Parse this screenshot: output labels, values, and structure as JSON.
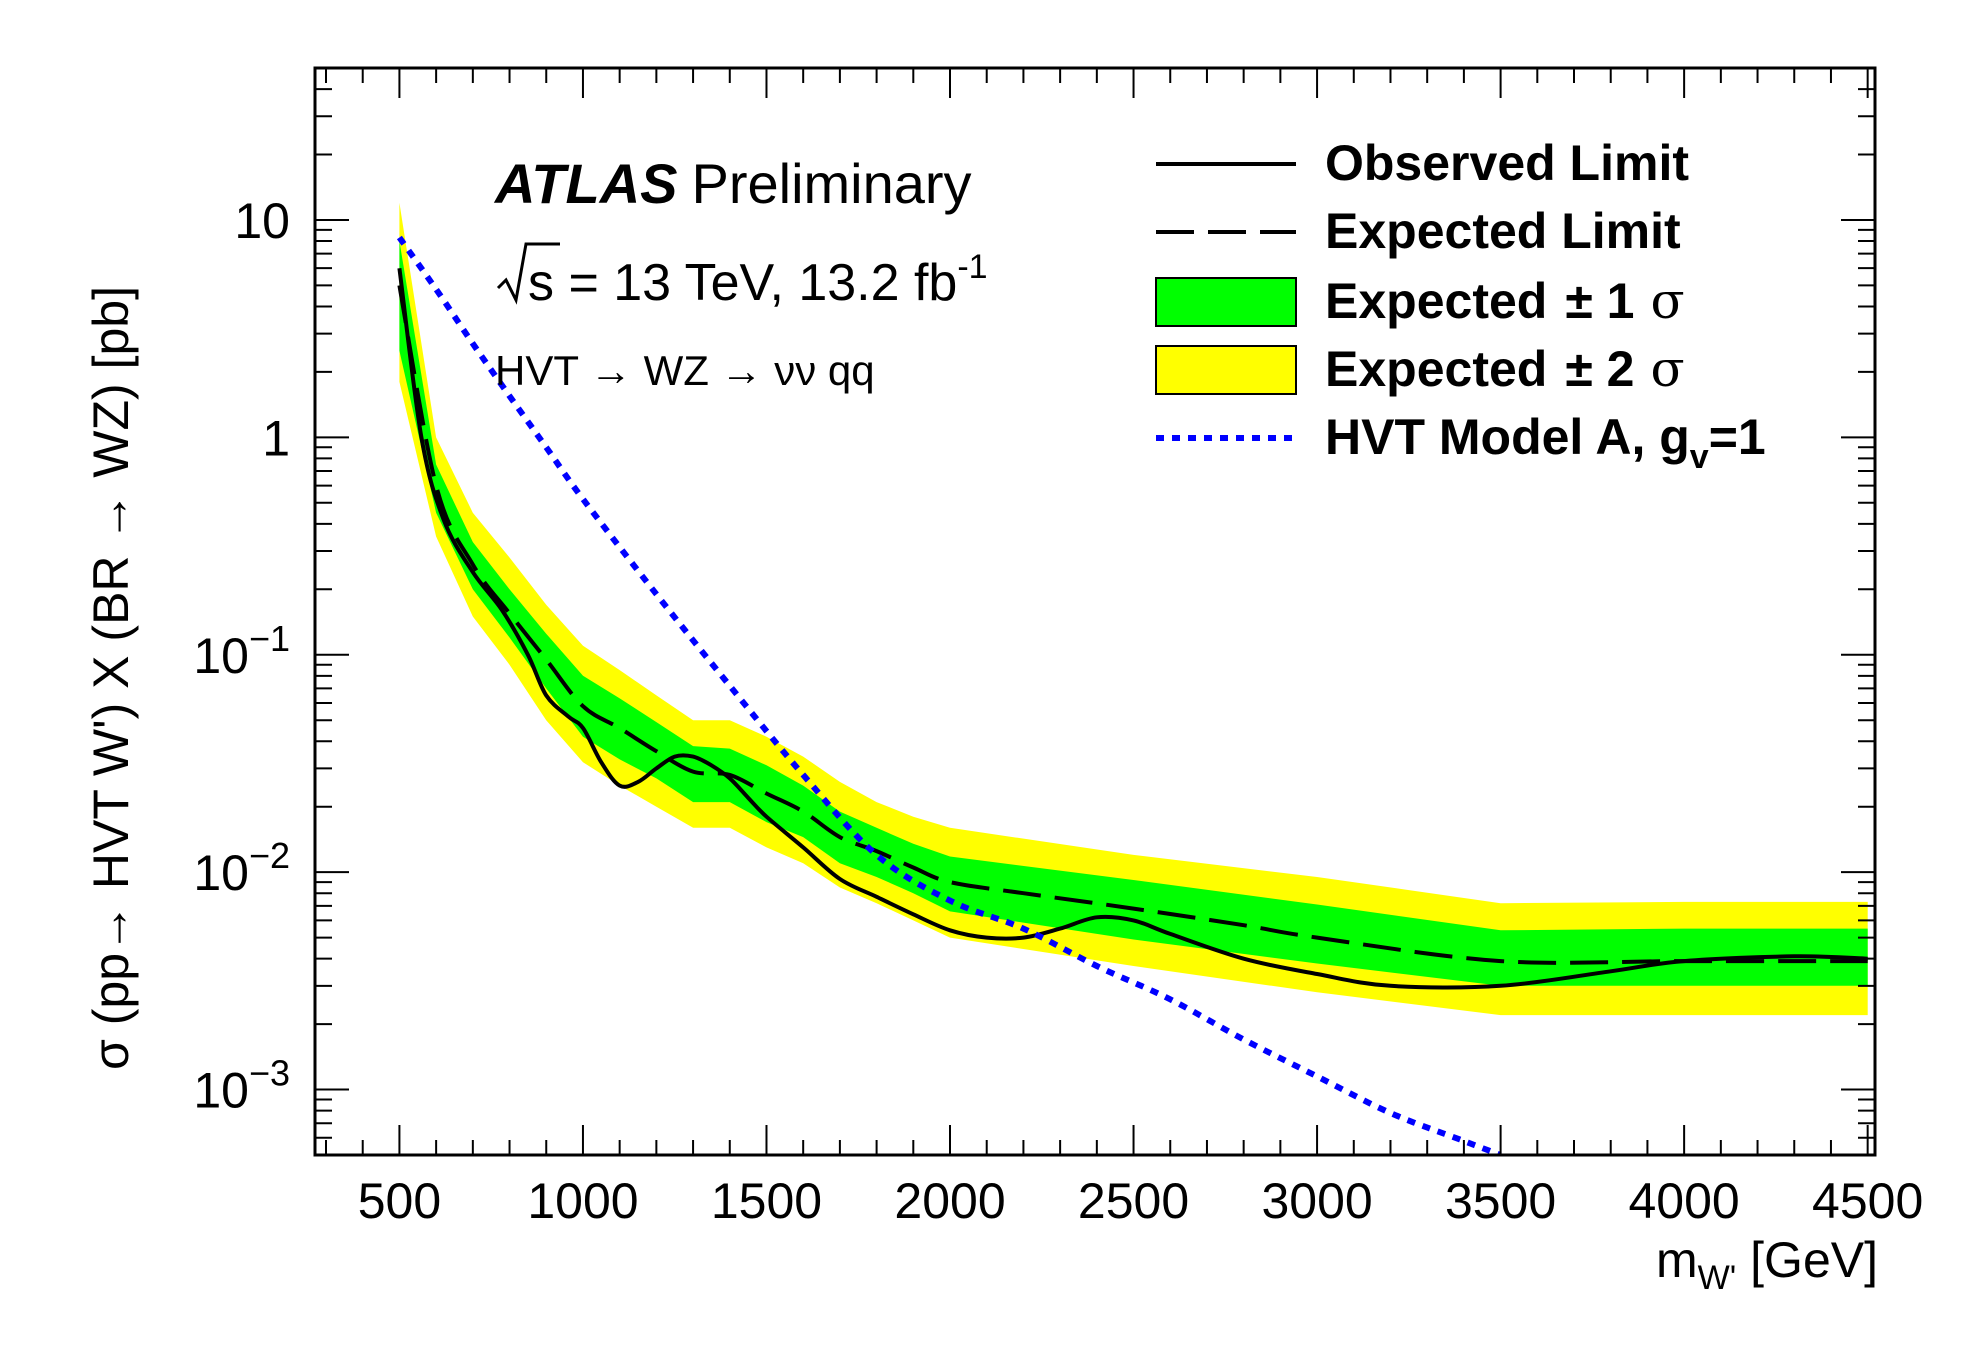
{
  "chart_data": {
    "type": "line",
    "x_axis": {
      "label_main": "m",
      "label_sub": "W'",
      "label_unit": " [GeV]",
      "range": [
        270,
        4520
      ],
      "ticks": [
        500,
        1000,
        1500,
        2000,
        2500,
        3000,
        3500,
        4000,
        4500
      ],
      "tick_labels": [
        "500",
        "1000",
        "1500",
        "2000",
        "2500",
        "3000",
        "3500",
        "4000",
        "4500"
      ]
    },
    "y_axis": {
      "label": "σ (pp→ HVT W') X (BR → WZ)  [pb]",
      "scale": "log",
      "range": [
        0.0005,
        50
      ],
      "ticks": [
        0.001,
        0.01,
        0.1,
        1,
        10
      ],
      "tick_label_plain": [
        "1",
        "10"
      ],
      "tick_label_base": "10",
      "tick_label_exp": [
        "−3",
        "−2",
        "−1"
      ]
    },
    "annotations": {
      "experiment": "ATLAS",
      "status": "Preliminary",
      "sqrt_s": "s = 13 TeV, 13.2 fb",
      "sqrt_s_sup": "-1",
      "channel": "HVT → WZ → νν qq"
    },
    "legend": {
      "observed": "Observed  Limit",
      "expected": "Expected Limit",
      "one_sigma_text": "Expected",
      "one_sigma_pm": "± 1",
      "one_sigma_sym": "σ",
      "two_sigma_text": "Expected",
      "two_sigma_pm": "± 2",
      "two_sigma_sym": "σ",
      "model_main": "HVT Model A, g",
      "model_sub": "v",
      "model_tail": "=1"
    },
    "colors": {
      "observed": "#000000",
      "expected": "#000000",
      "one_sigma": "#00ff00",
      "two_sigma": "#ffff00",
      "model": "#0000ff"
    },
    "series": {
      "two_sigma_band": {
        "x": [
          500,
          600,
          700,
          800,
          900,
          1000,
          1100,
          1200,
          1300,
          1400,
          1500,
          1600,
          1700,
          1800,
          1900,
          2000,
          2500,
          3000,
          3500,
          4000,
          4500
        ],
        "low": [
          1.8,
          0.35,
          0.15,
          0.09,
          0.05,
          0.032,
          0.025,
          0.02,
          0.016,
          0.016,
          0.013,
          0.011,
          0.0085,
          0.0072,
          0.006,
          0.005,
          0.0037,
          0.0028,
          0.0022,
          0.0022,
          0.0022
        ],
        "high": [
          12,
          1.0,
          0.45,
          0.28,
          0.17,
          0.11,
          0.085,
          0.065,
          0.05,
          0.05,
          0.042,
          0.034,
          0.026,
          0.021,
          0.018,
          0.016,
          0.012,
          0.0095,
          0.0072,
          0.0073,
          0.0073
        ]
      },
      "one_sigma_band": {
        "x": [
          500,
          600,
          700,
          800,
          900,
          1000,
          1100,
          1200,
          1300,
          1400,
          1500,
          1600,
          1700,
          1800,
          1900,
          2000,
          2500,
          3000,
          3500,
          4000,
          4500
        ],
        "low": [
          2.5,
          0.45,
          0.2,
          0.12,
          0.07,
          0.042,
          0.033,
          0.027,
          0.021,
          0.021,
          0.017,
          0.0145,
          0.011,
          0.0095,
          0.008,
          0.0066,
          0.0049,
          0.0038,
          0.003,
          0.003,
          0.003
        ],
        "high": [
          8,
          0.75,
          0.33,
          0.2,
          0.125,
          0.08,
          0.063,
          0.049,
          0.038,
          0.037,
          0.031,
          0.025,
          0.019,
          0.016,
          0.0135,
          0.0118,
          0.0092,
          0.0071,
          0.0054,
          0.0055,
          0.0055
        ]
      },
      "expected": {
        "x": [
          500,
          600,
          700,
          800,
          900,
          1000,
          1100,
          1200,
          1300,
          1400,
          1500,
          1600,
          1700,
          1800,
          1900,
          2000,
          2200,
          2500,
          2800,
          3000,
          3500,
          4000,
          4500
        ],
        "y": [
          5,
          0.6,
          0.26,
          0.155,
          0.095,
          0.058,
          0.046,
          0.036,
          0.029,
          0.028,
          0.023,
          0.019,
          0.0145,
          0.0125,
          0.0105,
          0.009,
          0.008,
          0.0068,
          0.0057,
          0.005,
          0.0039,
          0.0039,
          0.0039
        ]
      },
      "observed": {
        "x": [
          500,
          560,
          620,
          700,
          780,
          850,
          900,
          960,
          1000,
          1050,
          1100,
          1150,
          1200,
          1250,
          1300,
          1350,
          1400,
          1450,
          1500,
          1600,
          1700,
          1800,
          1900,
          2000,
          2100,
          2200,
          2300,
          2400,
          2500,
          2600,
          2800,
          3000,
          3200,
          3500,
          3800,
          4000,
          4300,
          4500
        ],
        "y": [
          6,
          1.0,
          0.42,
          0.24,
          0.16,
          0.1,
          0.065,
          0.052,
          0.046,
          0.032,
          0.025,
          0.026,
          0.03,
          0.034,
          0.034,
          0.031,
          0.027,
          0.022,
          0.018,
          0.013,
          0.0093,
          0.0077,
          0.0064,
          0.0054,
          0.005,
          0.005,
          0.0055,
          0.0062,
          0.006,
          0.0052,
          0.004,
          0.0034,
          0.003,
          0.003,
          0.0035,
          0.0039,
          0.0041,
          0.004
        ]
      },
      "model": {
        "x": [
          500,
          600,
          700,
          800,
          900,
          1000,
          1200,
          1400,
          1600,
          1800,
          2000,
          2200,
          2400,
          2600,
          2800,
          3000,
          3200,
          3400,
          3500
        ],
        "y": [
          8.3,
          4.8,
          2.7,
          1.55,
          0.9,
          0.52,
          0.19,
          0.072,
          0.028,
          0.012,
          0.0074,
          0.0055,
          0.0037,
          0.0026,
          0.0017,
          0.00115,
          0.00078,
          0.00058,
          0.0005
        ]
      }
    }
  }
}
